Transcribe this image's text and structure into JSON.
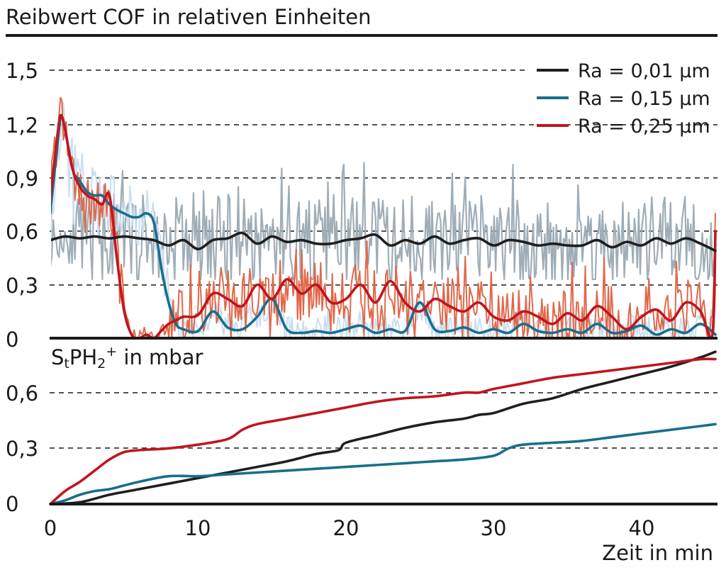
{
  "colors": {
    "black": "#1f1f1f",
    "teal": "#1a6e8c",
    "red": "#c0161e",
    "gray_band": "#9eadb7",
    "lightblue_band": "#c9def2",
    "orange_band": "#e0684a"
  },
  "chart_data": [
    {
      "type": "line",
      "title": "Reibwert COF in relativen Einheiten",
      "ylim": [
        0,
        1.65
      ],
      "xlim": [
        0,
        45
      ],
      "yticks": [
        0,
        0.3,
        0.6,
        0.9,
        1.2,
        1.5
      ],
      "ytick_labels": [
        "0",
        "0,3",
        "0,6",
        "0,9",
        "1,2",
        "1,5"
      ],
      "grid": "dashed horizontal",
      "legend_position": "top-right",
      "series": [
        {
          "name": "Ra = 0,01 µm",
          "color": "#1f1f1f",
          "x": [
            0,
            1,
            2,
            3,
            4,
            5,
            6,
            7,
            8,
            9,
            10,
            11,
            12,
            13,
            14,
            15,
            16,
            17,
            18,
            19,
            20,
            21,
            22,
            23,
            24,
            25,
            26,
            27,
            28,
            29,
            30,
            31,
            32,
            33,
            34,
            35,
            36,
            37,
            38,
            39,
            40,
            41,
            42,
            43,
            44,
            45
          ],
          "values": [
            0.55,
            0.57,
            0.56,
            0.57,
            0.56,
            0.57,
            0.56,
            0.55,
            0.52,
            0.55,
            0.5,
            0.55,
            0.56,
            0.59,
            0.53,
            0.57,
            0.54,
            0.55,
            0.53,
            0.53,
            0.55,
            0.56,
            0.58,
            0.52,
            0.55,
            0.53,
            0.57,
            0.53,
            0.55,
            0.56,
            0.52,
            0.55,
            0.54,
            0.52,
            0.53,
            0.52,
            0.52,
            0.55,
            0.51,
            0.54,
            0.52,
            0.56,
            0.53,
            0.56,
            0.53,
            0.49
          ]
        },
        {
          "name": "Ra = 0,15 µm",
          "color": "#1a6e8c",
          "x": [
            0,
            0.5,
            0.8,
            1.5,
            2,
            2.5,
            3,
            3.5,
            4,
            4.5,
            5,
            5.5,
            6,
            6.5,
            7,
            7.5,
            8,
            8.5,
            9,
            10,
            11,
            12,
            13,
            14,
            15,
            16,
            17,
            18,
            19,
            20,
            21,
            22,
            23,
            24,
            25,
            26,
            27,
            28,
            29,
            30,
            31,
            32,
            33,
            34,
            35,
            36,
            37,
            38,
            39,
            40,
            41,
            42,
            43,
            44,
            45
          ],
          "values": [
            0.7,
            1.1,
            1.24,
            0.95,
            0.88,
            0.82,
            0.8,
            0.8,
            0.75,
            0.72,
            0.7,
            0.68,
            0.68,
            0.7,
            0.65,
            0.4,
            0.2,
            0.08,
            0.05,
            0.04,
            0.15,
            0.06,
            0.05,
            0.12,
            0.22,
            0.05,
            0.03,
            0.04,
            0.03,
            0.05,
            0.07,
            0.03,
            0.05,
            0.04,
            0.2,
            0.05,
            0.04,
            0.06,
            0.03,
            0.05,
            0.03,
            0.08,
            0.04,
            0.03,
            0.05,
            0.03,
            0.08,
            0.03,
            0.04,
            0.07,
            0.02,
            0.05,
            0.03,
            0.08,
            0.02
          ]
        },
        {
          "name": "Ra = 0,25 µm",
          "color": "#c0161e",
          "x": [
            0,
            0.5,
            0.8,
            1.5,
            2,
            2.5,
            3,
            3.5,
            4,
            4.5,
            5,
            5.5,
            6,
            6.5,
            7,
            7.5,
            8,
            8.5,
            9,
            10,
            11,
            12,
            13,
            14,
            15,
            16,
            17,
            18,
            19,
            20,
            21,
            22,
            23,
            24,
            25,
            26,
            27,
            28,
            29,
            30,
            31,
            32,
            33,
            34,
            35,
            36,
            37,
            38,
            39,
            40,
            41,
            42,
            43,
            44,
            44.8,
            45
          ],
          "values": [
            0.78,
            1.15,
            1.24,
            0.95,
            0.85,
            0.8,
            0.78,
            0.75,
            0.8,
            0.45,
            0.15,
            0.02,
            0.0,
            0.02,
            0.0,
            0.04,
            0.08,
            0.1,
            0.12,
            0.13,
            0.25,
            0.22,
            0.18,
            0.3,
            0.22,
            0.33,
            0.25,
            0.3,
            0.2,
            0.22,
            0.3,
            0.2,
            0.32,
            0.2,
            0.15,
            0.22,
            0.18,
            0.15,
            0.2,
            0.12,
            0.1,
            0.15,
            0.12,
            0.08,
            0.14,
            0.1,
            0.18,
            0.12,
            0.05,
            0.12,
            0.16,
            0.1,
            0.2,
            0.15,
            0.02,
            0.6
          ]
        }
      ]
    },
    {
      "type": "line",
      "title": "StPH2+ in mbar",
      "title_parts": [
        "S",
        "t",
        "PH",
        "2",
        "+",
        " in mbar"
      ],
      "xlabel": "Zeit in min",
      "xlim": [
        0,
        45
      ],
      "ylim": [
        0,
        0.85
      ],
      "xticks": [
        0,
        10,
        20,
        30,
        40
      ],
      "xtick_labels": [
        "0",
        "10",
        "20",
        "30",
        "40"
      ],
      "yticks": [
        0,
        0.3,
        0.6
      ],
      "ytick_labels": [
        "0",
        "0,3",
        "0,6"
      ],
      "grid": "dashed horizontal",
      "series": [
        {
          "color": "#1f1f1f",
          "x": [
            0,
            2,
            4,
            6,
            8,
            10,
            12,
            14,
            16,
            18,
            19.5,
            20,
            22,
            24,
            26,
            28,
            29,
            30,
            32,
            34,
            36,
            38,
            40,
            42,
            44,
            45
          ],
          "values": [
            0,
            0.01,
            0.05,
            0.08,
            0.11,
            0.14,
            0.17,
            0.2,
            0.23,
            0.27,
            0.29,
            0.33,
            0.37,
            0.41,
            0.44,
            0.46,
            0.48,
            0.49,
            0.54,
            0.57,
            0.62,
            0.66,
            0.7,
            0.74,
            0.79,
            0.82
          ]
        },
        {
          "color": "#1a6e8c",
          "x": [
            0,
            1,
            2,
            3,
            4,
            5,
            6,
            8,
            10,
            12,
            14,
            16,
            18,
            20,
            22,
            24,
            26,
            28,
            30,
            31,
            32,
            34,
            36,
            38,
            40,
            42,
            44,
            45
          ],
          "values": [
            0,
            0.02,
            0.05,
            0.07,
            0.08,
            0.1,
            0.12,
            0.15,
            0.15,
            0.16,
            0.17,
            0.18,
            0.19,
            0.2,
            0.21,
            0.22,
            0.23,
            0.24,
            0.26,
            0.3,
            0.32,
            0.33,
            0.34,
            0.36,
            0.38,
            0.4,
            0.42,
            0.43
          ]
        },
        {
          "color": "#c0161e",
          "x": [
            0,
            1,
            2,
            3,
            4,
            5,
            6,
            8,
            10,
            12,
            13,
            14,
            16,
            18,
            20,
            22,
            24,
            26,
            28,
            29,
            30,
            32,
            34,
            36,
            38,
            40,
            42,
            44,
            45
          ],
          "values": [
            0,
            0.07,
            0.12,
            0.18,
            0.24,
            0.28,
            0.29,
            0.3,
            0.32,
            0.35,
            0.4,
            0.43,
            0.46,
            0.49,
            0.52,
            0.55,
            0.57,
            0.58,
            0.6,
            0.6,
            0.62,
            0.65,
            0.68,
            0.7,
            0.72,
            0.74,
            0.76,
            0.78,
            0.78
          ]
        }
      ]
    }
  ]
}
